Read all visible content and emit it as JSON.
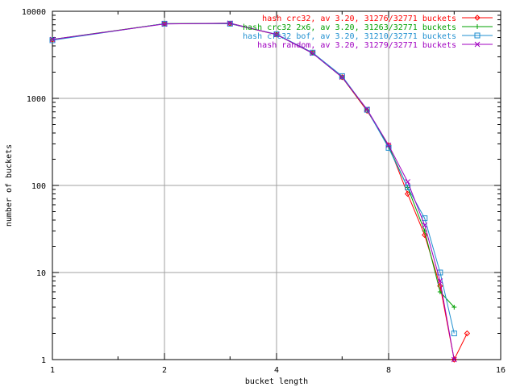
{
  "chart_data": {
    "type": "line",
    "title": "",
    "xlabel": "bucket length",
    "ylabel": "number of buckets",
    "x_scale": "log2",
    "y_scale": "log10",
    "xlim": [
      1,
      16
    ],
    "ylim": [
      1,
      10000
    ],
    "grid": true,
    "legend_position": "top-right",
    "x_ticks": [
      "1",
      "2",
      "4",
      "8",
      "16"
    ],
    "y_ticks": [
      "1",
      "10",
      "100",
      "1000",
      "10000"
    ],
    "series": [
      {
        "name": "hash crc32, av 3.20, 31276/32771 buckets",
        "color": "#ff0000",
        "marker": "diamond",
        "x": [
          1,
          2,
          3,
          4,
          5,
          6,
          7,
          8,
          9,
          10,
          11,
          12,
          13
        ],
        "y": [
          4700,
          7200,
          7200,
          5400,
          3350,
          1750,
          720,
          290,
          80,
          27,
          7,
          1,
          2
        ]
      },
      {
        "name": "hash crc32 2x6, av 3.20, 31263/32771 buckets",
        "color": "#00a000",
        "marker": "plus",
        "x": [
          1,
          2,
          3,
          4,
          5,
          6,
          7,
          8,
          9,
          10,
          11,
          12
        ],
        "y": [
          4750,
          7200,
          7300,
          5400,
          3300,
          1750,
          740,
          280,
          95,
          30,
          6,
          4
        ]
      },
      {
        "name": "hash crc32 bof, av 3.20, 31210/32771 buckets",
        "color": "#1f8fd0",
        "marker": "square",
        "x": [
          1,
          2,
          3,
          4,
          5,
          6,
          7,
          8,
          9,
          10,
          11,
          12
        ],
        "y": [
          4650,
          7200,
          7200,
          5450,
          3350,
          1800,
          740,
          270,
          95,
          42,
          10,
          2
        ]
      },
      {
        "name": "hash random, av 3.20, 31279/32771 buckets",
        "color": "#a000c0",
        "marker": "cross",
        "x": [
          1,
          2,
          3,
          4,
          5,
          6,
          7,
          8,
          9,
          10,
          11,
          12
        ],
        "y": [
          4750,
          7150,
          7300,
          5400,
          3300,
          1750,
          750,
          290,
          110,
          35,
          8,
          1
        ]
      }
    ]
  }
}
